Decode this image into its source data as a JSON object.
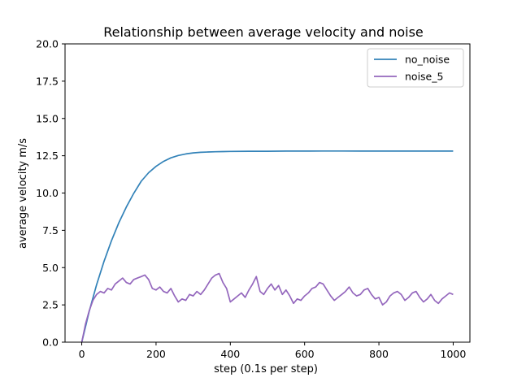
{
  "chart_data": {
    "type": "line",
    "title": "Relationship between average velocity and noise",
    "xlabel": "step (0.1s per step)",
    "ylabel": "average velocity m/s",
    "xlim": [
      -45,
      1045
    ],
    "ylim": [
      0,
      20
    ],
    "xticks": [
      0,
      200,
      400,
      600,
      800,
      1000
    ],
    "xtick_labels": [
      "0",
      "200",
      "400",
      "600",
      "800",
      "1000"
    ],
    "yticks": [
      0,
      2.5,
      5,
      7.5,
      10,
      12.5,
      15,
      17.5,
      20
    ],
    "ytick_labels": [
      "0.0",
      "2.5",
      "5.0",
      "7.5",
      "10.0",
      "12.5",
      "15.0",
      "17.5",
      "20.0"
    ],
    "grid": false,
    "legend_position": "top-right",
    "series": [
      {
        "name": "no_noise",
        "color": "#3282b8",
        "x": [
          0,
          20,
          40,
          60,
          80,
          100,
          120,
          140,
          160,
          180,
          200,
          220,
          240,
          260,
          280,
          300,
          320,
          340,
          360,
          380,
          400,
          450,
          500,
          550,
          600,
          650,
          700,
          750,
          800,
          850,
          900,
          950,
          1000
        ],
        "y": [
          0.0,
          2.06,
          3.85,
          5.43,
          6.8,
          8.01,
          9.06,
          9.98,
          10.79,
          11.36,
          11.79,
          12.12,
          12.36,
          12.52,
          12.62,
          12.69,
          12.73,
          12.75,
          12.77,
          12.78,
          12.79,
          12.8,
          12.8,
          12.81,
          12.81,
          12.82,
          12.82,
          12.81,
          12.81,
          12.81,
          12.81,
          12.81,
          12.81
        ]
      },
      {
        "name": "noise_5",
        "color": "#9467bd",
        "x": [
          0,
          10,
          20,
          30,
          40,
          50,
          60,
          70,
          80,
          90,
          100,
          110,
          120,
          130,
          140,
          150,
          160,
          170,
          180,
          190,
          200,
          210,
          220,
          230,
          240,
          250,
          260,
          270,
          280,
          290,
          300,
          310,
          320,
          330,
          340,
          350,
          360,
          370,
          380,
          390,
          400,
          410,
          420,
          430,
          440,
          450,
          460,
          470,
          480,
          490,
          500,
          510,
          520,
          530,
          540,
          550,
          560,
          570,
          580,
          590,
          600,
          610,
          620,
          630,
          640,
          650,
          660,
          670,
          680,
          690,
          700,
          710,
          720,
          730,
          740,
          750,
          760,
          770,
          780,
          790,
          800,
          810,
          820,
          830,
          840,
          850,
          860,
          870,
          880,
          890,
          900,
          910,
          920,
          930,
          940,
          950,
          960,
          970,
          980,
          990,
          1000
        ],
        "y": [
          0.0,
          1.2,
          2.1,
          2.8,
          3.2,
          3.4,
          3.3,
          3.6,
          3.5,
          3.9,
          4.1,
          4.3,
          4.0,
          3.9,
          4.2,
          4.3,
          4.4,
          4.5,
          4.2,
          3.6,
          3.5,
          3.7,
          3.4,
          3.3,
          3.6,
          3.1,
          2.7,
          2.9,
          2.8,
          3.2,
          3.1,
          3.4,
          3.2,
          3.5,
          3.9,
          4.3,
          4.5,
          4.6,
          4.0,
          3.6,
          2.7,
          2.9,
          3.1,
          3.3,
          3.0,
          3.5,
          3.9,
          4.4,
          3.4,
          3.2,
          3.6,
          3.9,
          3.5,
          3.8,
          3.2,
          3.5,
          3.1,
          2.6,
          2.9,
          2.8,
          3.1,
          3.3,
          3.6,
          3.7,
          4.0,
          3.9,
          3.5,
          3.1,
          2.8,
          3.0,
          3.2,
          3.4,
          3.7,
          3.3,
          3.1,
          3.2,
          3.5,
          3.6,
          3.2,
          2.9,
          3.0,
          2.5,
          2.7,
          3.1,
          3.3,
          3.4,
          3.2,
          2.8,
          3.0,
          3.3,
          3.4,
          3.0,
          2.7,
          2.9,
          3.2,
          2.8,
          2.6,
          2.9,
          3.1,
          3.3,
          3.2
        ]
      }
    ]
  }
}
